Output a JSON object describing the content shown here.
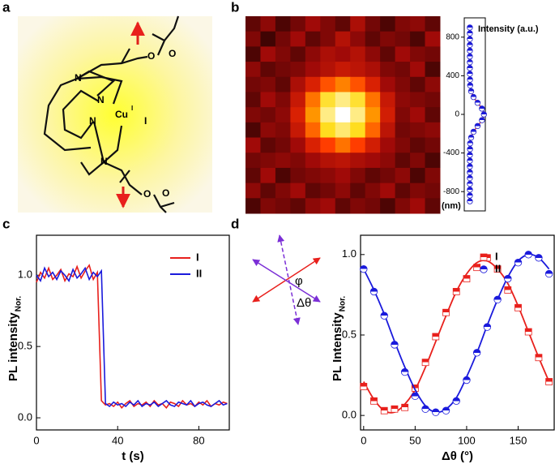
{
  "figure": {
    "panel_labels": [
      "a",
      "b",
      "c",
      "d"
    ],
    "molecule_labels": [
      "N",
      "N",
      "N",
      "Cu",
      "I",
      "I",
      "N",
      "O",
      "O",
      "O",
      "O"
    ],
    "angle_labels": [
      "φ",
      "Δθ"
    ]
  },
  "chart_data": [
    {
      "type": "heatmap",
      "colormap": [
        "#000000",
        "#a00a08",
        "#ff3000",
        "#ffd800",
        "#ffffff"
      ],
      "values": [
        [
          0.15,
          0.22,
          0.12,
          0.18,
          0.25,
          0.2,
          0.15,
          0.28,
          0.18,
          0.12,
          0.2,
          0.22,
          0.15
        ],
        [
          0.2,
          0.1,
          0.18,
          0.25,
          0.15,
          0.2,
          0.3,
          0.22,
          0.15,
          0.2,
          0.18,
          0.12,
          0.25
        ],
        [
          0.12,
          0.25,
          0.2,
          0.15,
          0.22,
          0.28,
          0.25,
          0.3,
          0.22,
          0.15,
          0.25,
          0.2,
          0.18
        ],
        [
          0.22,
          0.15,
          0.18,
          0.2,
          0.25,
          0.3,
          0.35,
          0.32,
          0.28,
          0.2,
          0.18,
          0.25,
          0.12
        ],
        [
          0.18,
          0.2,
          0.15,
          0.28,
          0.4,
          0.55,
          0.62,
          0.55,
          0.4,
          0.25,
          0.2,
          0.15,
          0.22
        ],
        [
          0.15,
          0.25,
          0.2,
          0.35,
          0.6,
          0.8,
          0.88,
          0.8,
          0.6,
          0.35,
          0.22,
          0.2,
          0.18
        ],
        [
          0.2,
          0.18,
          0.22,
          0.4,
          0.65,
          0.88,
          1.0,
          0.88,
          0.65,
          0.38,
          0.2,
          0.25,
          0.15
        ],
        [
          0.12,
          0.22,
          0.2,
          0.35,
          0.58,
          0.78,
          0.86,
          0.78,
          0.58,
          0.32,
          0.18,
          0.2,
          0.22
        ],
        [
          0.25,
          0.15,
          0.18,
          0.25,
          0.4,
          0.52,
          0.6,
          0.52,
          0.38,
          0.25,
          0.2,
          0.15,
          0.18
        ],
        [
          0.18,
          0.2,
          0.22,
          0.2,
          0.25,
          0.3,
          0.32,
          0.28,
          0.25,
          0.22,
          0.15,
          0.2,
          0.12
        ],
        [
          0.15,
          0.25,
          0.12,
          0.18,
          0.2,
          0.22,
          0.25,
          0.2,
          0.15,
          0.18,
          0.22,
          0.12,
          0.2
        ],
        [
          0.22,
          0.15,
          0.2,
          0.25,
          0.15,
          0.18,
          0.22,
          0.15,
          0.2,
          0.25,
          0.15,
          0.2,
          0.18
        ],
        [
          0.12,
          0.2,
          0.18,
          0.15,
          0.22,
          0.25,
          0.15,
          0.2,
          0.18,
          0.12,
          0.2,
          0.25,
          0.15
        ]
      ]
    },
    {
      "type": "profile",
      "xlabel": "Intensity (a.u.)",
      "ylabel": "(nm)",
      "xlim": [
        -0.4,
        1.1
      ],
      "ylim": [
        -1000,
        1000
      ],
      "yticks": [
        -800,
        -400,
        0,
        400,
        800
      ],
      "series": [
        {
          "color": "#e8201c",
          "marker_color": "#2020c8",
          "y": [
            -900,
            -840,
            -780,
            -720,
            -660,
            -600,
            -540,
            -480,
            -420,
            -360,
            -300,
            -240,
            -180,
            -120,
            -60,
            0,
            60,
            120,
            180,
            240,
            300,
            360,
            420,
            480,
            540,
            600,
            660,
            720,
            780,
            840,
            900
          ],
          "x": [
            0,
            0,
            0,
            0,
            0,
            0,
            0,
            0,
            0,
            0.01,
            0.02,
            0.09,
            0.26,
            0.55,
            0.86,
            1,
            0.86,
            0.55,
            0.26,
            0.09,
            0.02,
            0.01,
            0,
            0,
            0,
            0,
            0,
            0,
            0,
            0,
            0
          ]
        }
      ]
    },
    {
      "type": "line",
      "xlabel": "t (s)",
      "ylabel": "PL intensity",
      "ylabel_sub": "Nor.",
      "xlim": [
        0,
        95
      ],
      "xticks": [
        0,
        40,
        80
      ],
      "ylim": [
        -0.085,
        1.28
      ],
      "yticks": [
        {
          "value": 0,
          "label": "0.0"
        },
        {
          "value": 0.5,
          "label": "0.5"
        },
        {
          "value": 1,
          "label": "1.0"
        }
      ],
      "x": [
        0,
        2,
        4,
        6,
        8,
        10,
        12,
        14,
        16,
        18,
        20,
        22,
        24,
        26,
        28,
        30,
        32,
        34,
        36,
        38,
        40,
        42,
        44,
        46,
        48,
        50,
        52,
        54,
        56,
        58,
        60,
        62,
        64,
        66,
        68,
        70,
        72,
        74,
        76,
        78,
        80,
        82,
        84,
        86,
        88,
        90,
        92,
        94
      ],
      "series": [
        {
          "name": "I",
          "color": "#e8201c",
          "values": [
            0.95,
            1.02,
            0.98,
            1.05,
            0.97,
            1.0,
            1.04,
            0.96,
            1.01,
            0.99,
            1.06,
            0.98,
            1.03,
            1.07,
            0.97,
            1.02,
            0.12,
            0.09,
            0.1,
            0.08,
            0.11,
            0.07,
            0.1,
            0.12,
            0.08,
            0.1,
            0.09,
            0.11,
            0.08,
            0.12,
            0.09,
            0.1,
            0.07,
            0.11,
            0.1,
            0.08,
            0.12,
            0.09,
            0.1,
            0.08,
            0.11,
            0.09,
            0.12,
            0.08,
            0.1,
            0.09,
            0.11,
            0.1
          ]
        },
        {
          "name": "II",
          "color": "#1a1adc",
          "values": [
            1.0,
            0.96,
            1.05,
            0.99,
            1.02,
            0.97,
            1.03,
            1.0,
            0.96,
            1.04,
            0.98,
            1.01,
            1.05,
            0.97,
            1.02,
            0.99,
            1.03,
            0.1,
            0.08,
            0.11,
            0.09,
            0.1,
            0.08,
            0.11,
            0.09,
            0.12,
            0.08,
            0.1,
            0.09,
            0.11,
            0.08,
            0.1,
            0.12,
            0.09,
            0.08,
            0.11,
            0.1,
            0.09,
            0.12,
            0.08,
            0.1,
            0.11,
            0.09,
            0.08,
            0.1,
            0.12,
            0.09,
            0.1
          ]
        }
      ]
    },
    {
      "type": "scatter",
      "xlabel": "Δθ (°)",
      "ylabel": "PL Intensity",
      "ylabel_sub": "Nor.",
      "xlim": [
        -3,
        185
      ],
      "xticks": [
        0,
        50,
        100,
        150
      ],
      "ylim": [
        -0.09,
        1.12
      ],
      "yticks": [
        {
          "value": 0,
          "label": "0.0"
        },
        {
          "value": 0.5,
          "label": "0.5"
        },
        {
          "value": 1,
          "label": "1.0"
        }
      ],
      "x": [
        0,
        10,
        20,
        30,
        40,
        50,
        60,
        70,
        80,
        90,
        100,
        110,
        120,
        130,
        140,
        150,
        160,
        170,
        180
      ],
      "series": [
        {
          "name": "I",
          "color": "#e8201c",
          "marker": "square",
          "values": [
            0.18,
            0.09,
            0.03,
            0.04,
            0.05,
            0.17,
            0.33,
            0.49,
            0.64,
            0.77,
            0.85,
            0.92,
            0.98,
            0.91,
            0.78,
            0.67,
            0.52,
            0.36,
            0.21
          ],
          "fit": [
            0.21,
            0.1,
            0.03,
            0.02,
            0.07,
            0.16,
            0.3,
            0.46,
            0.62,
            0.77,
            0.88,
            0.95,
            0.96,
            0.91,
            0.82,
            0.68,
            0.52,
            0.36,
            0.21
          ]
        },
        {
          "name": "II",
          "color": "#1a1adc",
          "marker": "circle",
          "values": [
            0.91,
            0.77,
            0.62,
            0.44,
            0.27,
            0.12,
            0.04,
            0.02,
            0.03,
            0.09,
            0.22,
            0.39,
            0.55,
            0.72,
            0.85,
            0.95,
            1.0,
            0.98,
            0.88
          ],
          "fit": [
            0.91,
            0.78,
            0.63,
            0.46,
            0.3,
            0.16,
            0.06,
            0.02,
            0.04,
            0.11,
            0.24,
            0.39,
            0.56,
            0.72,
            0.86,
            0.96,
            1.0,
            0.98,
            0.91
          ]
        }
      ]
    }
  ]
}
